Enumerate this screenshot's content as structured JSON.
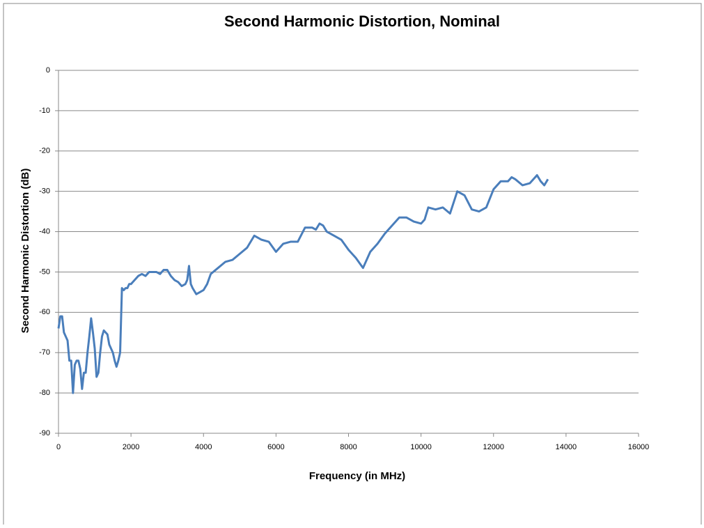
{
  "chart_data": {
    "type": "line",
    "title": "Second Harmonic Distortion, Nominal",
    "xlabel": "Frequency (in MHz)",
    "ylabel": "Second Harmonic Distortion (dB)",
    "xlim": [
      0,
      16000
    ],
    "xticks": [
      0,
      2000,
      4000,
      6000,
      8000,
      10000,
      12000,
      14000,
      16000
    ],
    "ylim": [
      -90,
      0
    ],
    "yticks": [
      0,
      -10,
      -20,
      -30,
      -40,
      -50,
      -60,
      -70,
      -80,
      -90
    ],
    "grid": true,
    "x": [
      0,
      50,
      100,
      150,
      200,
      250,
      300,
      350,
      400,
      450,
      500,
      550,
      600,
      650,
      700,
      750,
      800,
      850,
      900,
      950,
      1000,
      1050,
      1100,
      1150,
      1200,
      1250,
      1300,
      1350,
      1400,
      1500,
      1550,
      1600,
      1650,
      1700,
      1750,
      1800,
      1850,
      1900,
      1950,
      2000,
      2050,
      2100,
      2200,
      2300,
      2400,
      2500,
      2600,
      2700,
      2800,
      2900,
      3000,
      3100,
      3200,
      3300,
      3400,
      3500,
      3550,
      3600,
      3650,
      3700,
      3800,
      3900,
      4000,
      4100,
      4200,
      4400,
      4600,
      4800,
      5000,
      5200,
      5400,
      5600,
      5800,
      6000,
      6200,
      6400,
      6600,
      6800,
      7000,
      7100,
      7200,
      7300,
      7400,
      7600,
      7800,
      8000,
      8200,
      8400,
      8600,
      8800,
      9000,
      9200,
      9400,
      9600,
      9800,
      10000,
      10100,
      10200,
      10400,
      10600,
      10800,
      11000,
      11200,
      11400,
      11600,
      11800,
      12000,
      12200,
      12400,
      12500,
      12600,
      12800,
      13000,
      13200,
      13300,
      13400,
      13500
    ],
    "series": [
      {
        "name": "Second Harmonic Distortion",
        "color": "#4a7ebb",
        "values": [
          -64,
          -61,
          -61,
          -65,
          -66,
          -67,
          -72,
          -72,
          -80,
          -73,
          -72,
          -72,
          -74,
          -79,
          -75,
          -75,
          -70,
          -66,
          -61.5,
          -65,
          -69,
          -76,
          -75,
          -70,
          -66,
          -64.5,
          -65,
          -65.5,
          -68,
          -70,
          -72,
          -73.5,
          -72,
          -70,
          -54,
          -54.5,
          -54,
          -54,
          -53,
          -53,
          -52.5,
          -52,
          -51,
          -50.5,
          -51,
          -50,
          -50,
          -50,
          -50.5,
          -49.5,
          -49.5,
          -51,
          -52,
          -52.5,
          -53.5,
          -53,
          -52,
          -48.5,
          -53,
          -54,
          -55.5,
          -55,
          -54.5,
          -53,
          -50.5,
          -49,
          -47.5,
          -47,
          -45.5,
          -44,
          -41,
          -42,
          -42.5,
          -45,
          -43,
          -42.5,
          -42.5,
          -39,
          -39,
          -39.5,
          -38,
          -38.5,
          -40,
          -41,
          -42,
          -44.5,
          -46.5,
          -49,
          -45,
          -43,
          -40.5,
          -38.5,
          -36.5,
          -36.5,
          -37.5,
          -38,
          -37,
          -34,
          -34.5,
          -34,
          -35.5,
          -30,
          -31,
          -34.5,
          -35,
          -34,
          -29.5,
          -27.5,
          -27.5,
          -26.5,
          -27,
          -28.5,
          -28,
          -26,
          -27.5,
          -28.5,
          -27
        ]
      }
    ]
  }
}
